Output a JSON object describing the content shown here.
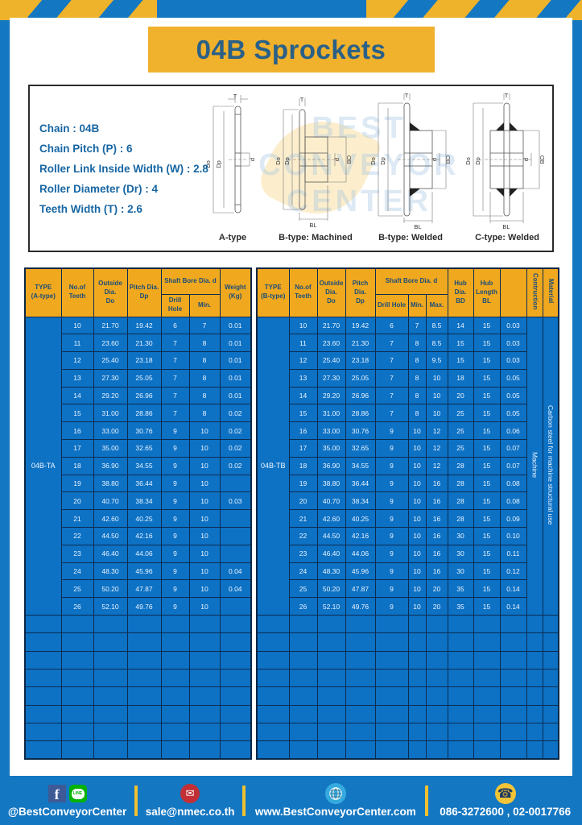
{
  "page": {
    "title": "04B Sprockets"
  },
  "specs": {
    "lines": [
      "Chain : 04B",
      "Chain Pitch (P) : 6",
      "Roller Link Inside Width (W) : 2.8",
      "Roller Diameter (Dr) : 4",
      "Teeth Width (T) : 2.6"
    ]
  },
  "watermark": {
    "text": "BEST\nCONVEYOR\nCENTER"
  },
  "diagrams": {
    "dims": {
      "t": "T",
      "dia_outer": "Do",
      "dia_pitch": "Dp",
      "bore": "d",
      "hub_dia": "BD",
      "hub_len": "BL"
    },
    "types": [
      "A-type",
      "B-type: Machined",
      "B-type: Welded",
      "C-type: Welded"
    ]
  },
  "table_a": {
    "header": {
      "type": "TYPE\n(A-type)",
      "teeth": "No.of\nTeeth",
      "outside": "Outside\nDia.\nDo",
      "pitch": "Pitch Dia.\nDp",
      "shaft": "Shaft Bore Dia. d",
      "drill": "Drill Hole",
      "min": "Min.",
      "weight": "Weight\n(Kg)"
    },
    "type_label": "04B-TA",
    "rows": [
      [
        "10",
        "21.70",
        "19.42",
        "6",
        "7",
        "0.01"
      ],
      [
        "11",
        "23.60",
        "21.30",
        "7",
        "8",
        "0.01"
      ],
      [
        "12",
        "25.40",
        "23.18",
        "7",
        "8",
        "0.01"
      ],
      [
        "13",
        "27.30",
        "25.05",
        "7",
        "8",
        "0.01"
      ],
      [
        "14",
        "29.20",
        "26.96",
        "7",
        "8",
        "0.01"
      ],
      [
        "15",
        "31.00",
        "28.86",
        "7",
        "8",
        "0.02"
      ],
      [
        "16",
        "33.00",
        "30.76",
        "9",
        "10",
        "0.02"
      ],
      [
        "17",
        "35.00",
        "32.65",
        "9",
        "10",
        "0.02"
      ],
      [
        "18",
        "36.90",
        "34.55",
        "9",
        "10",
        "0.02"
      ],
      [
        "19",
        "38.80",
        "36.44",
        "9",
        "10",
        ""
      ],
      [
        "20",
        "40.70",
        "38.34",
        "9",
        "10",
        "0.03"
      ],
      [
        "21",
        "42.60",
        "40.25",
        "9",
        "10",
        ""
      ],
      [
        "22",
        "44.50",
        "42.16",
        "9",
        "10",
        ""
      ],
      [
        "23",
        "46.40",
        "44.06",
        "9",
        "10",
        ""
      ],
      [
        "24",
        "48.30",
        "45.96",
        "9",
        "10",
        "0.04"
      ],
      [
        "25",
        "50.20",
        "47.87",
        "9",
        "10",
        "0.04"
      ],
      [
        "26",
        "52.10",
        "49.76",
        "9",
        "10",
        ""
      ]
    ],
    "empty_rows": 8,
    "columns": 7
  },
  "table_b": {
    "header": {
      "type": "TYPE\n(B-type)",
      "teeth": "No.of\nTeeth",
      "outside": "Outside\nDia.\nDo",
      "pitch": "Pitch Dia.\nDp",
      "shaft": "Shaft Bore Dia. d",
      "drill": "Drill Hole",
      "min": "Min.",
      "max": "Max.",
      "hub_dia": "Hub Dia.\nBD",
      "hub_len": "Hub\nLength\nBL",
      "construction": "Contruction",
      "material": "Material"
    },
    "type_label": "04B-TB",
    "construction": "Machine",
    "material": "Carbon steel for machine structural use",
    "rows": [
      [
        "10",
        "21.70",
        "19.42",
        "6",
        "7",
        "8.5",
        "14",
        "15",
        "0.03"
      ],
      [
        "11",
        "23.60",
        "21.30",
        "7",
        "8",
        "8.5",
        "15",
        "15",
        "0.03"
      ],
      [
        "12",
        "25.40",
        "23.18",
        "7",
        "8",
        "9.5",
        "15",
        "15",
        "0.03"
      ],
      [
        "13",
        "27.30",
        "25.05",
        "7",
        "8",
        "10",
        "18",
        "15",
        "0.05"
      ],
      [
        "14",
        "29.20",
        "26.96",
        "7",
        "8",
        "10",
        "20",
        "15",
        "0.05"
      ],
      [
        "15",
        "31.00",
        "28.86",
        "7",
        "8",
        "10",
        "25",
        "15",
        "0.05"
      ],
      [
        "16",
        "33.00",
        "30.76",
        "9",
        "10",
        "12",
        "25",
        "15",
        "0.06"
      ],
      [
        "17",
        "35.00",
        "32.65",
        "9",
        "10",
        "12",
        "25",
        "15",
        "0.07"
      ],
      [
        "18",
        "36.90",
        "34.55",
        "9",
        "10",
        "12",
        "28",
        "15",
        "0.07"
      ],
      [
        "19",
        "38.80",
        "36.44",
        "9",
        "10",
        "16",
        "28",
        "15",
        "0.08"
      ],
      [
        "20",
        "40.70",
        "38.34",
        "9",
        "10",
        "16",
        "28",
        "15",
        "0.08"
      ],
      [
        "21",
        "42.60",
        "40.25",
        "9",
        "10",
        "16",
        "28",
        "15",
        "0.09"
      ],
      [
        "22",
        "44.50",
        "42.16",
        "9",
        "10",
        "16",
        "30",
        "15",
        "0.10"
      ],
      [
        "23",
        "46.40",
        "44.06",
        "9",
        "10",
        "16",
        "30",
        "15",
        "0.11"
      ],
      [
        "24",
        "48.30",
        "45.96",
        "9",
        "10",
        "16",
        "30",
        "15",
        "0.12"
      ],
      [
        "25",
        "50.20",
        "47.87",
        "9",
        "10",
        "20",
        "35",
        "15",
        "0.14"
      ],
      [
        "26",
        "52.10",
        "49.76",
        "9",
        "10",
        "20",
        "35",
        "15",
        "0.14"
      ]
    ],
    "empty_rows": 8,
    "columns": 12
  },
  "footer": {
    "social_handle": "@BestConveyorCenter",
    "email": "sale@nmec.co.th",
    "website": "www.BestConveyorCenter.com",
    "phones": "086-3272600 , 02-0017766",
    "facebook_glyph": "f",
    "line_glyph": "LINE",
    "mail_glyph": "✉",
    "phone_glyph": "☎"
  },
  "colors": {
    "page_blue": "#1477c2",
    "stripe_yellow": "#eeb22b",
    "banner_yellow": "#f0b12c",
    "banner_text_blue": "#2a6088",
    "table_header_yellow": "#f0a81f",
    "table_body_blue": "#0d71c4",
    "grid_navy": "#0b2d52",
    "facebook_blue": "#3d5a96",
    "line_green": "#06b302",
    "email_red": "#c22f35",
    "globe_blue": "#35aadf",
    "phone_yellow": "#f2c437"
  }
}
